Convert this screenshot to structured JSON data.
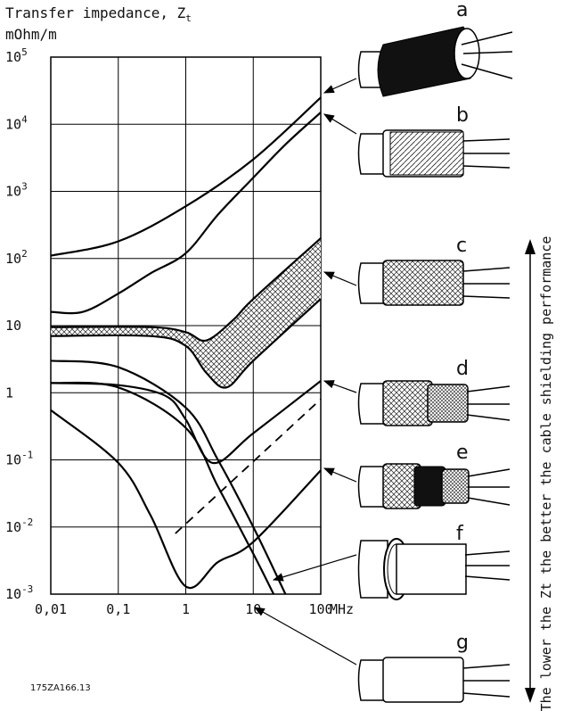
{
  "figure": {
    "y_title_line1": "Transfer impedance, Z",
    "y_title_sub": "t",
    "y_title_line2": "mOhm/m",
    "x_unit": "MHz",
    "figure_id": "175ZA166.13",
    "side_note": "The lower the Zt the better the cable shielding performance",
    "cable_labels": [
      "a",
      "b",
      "c",
      "d",
      "e",
      "f",
      "g"
    ]
  },
  "chart_data": {
    "type": "line",
    "xscale": "log",
    "yscale": "log",
    "xlim": [
      0.01,
      100
    ],
    "ylim": [
      0.001,
      100000
    ],
    "grid": true,
    "xticks": [
      "0,01",
      "0,1",
      "1",
      "10",
      "100"
    ],
    "yticks": [
      "10-3",
      "10-2",
      "10-1",
      "1",
      "10",
      "102",
      "103",
      "104",
      "105"
    ],
    "series": [
      {
        "name": "a",
        "x": [
          0.01,
          0.1,
          1,
          10,
          100
        ],
        "y": [
          110,
          180,
          600,
          3000,
          25000
        ]
      },
      {
        "name": "b",
        "x": [
          0.01,
          0.03,
          0.1,
          0.3,
          1,
          3,
          10,
          30,
          100
        ],
        "y": [
          16,
          16,
          30,
          60,
          120,
          450,
          1600,
          5000,
          15000
        ]
      },
      {
        "name": "c-upper",
        "x": [
          0.01,
          0.3,
          1,
          2,
          5,
          10,
          100
        ],
        "y": [
          9.5,
          9.5,
          8,
          6,
          12,
          25,
          200
        ]
      },
      {
        "name": "c-lower",
        "x": [
          0.01,
          0.3,
          1,
          2,
          4,
          10,
          100
        ],
        "y": [
          7,
          7,
          5,
          2,
          1.2,
          3,
          25
        ]
      },
      {
        "name": "d",
        "x": [
          0.01,
          0.1,
          0.5,
          1,
          2.5,
          10,
          100
        ],
        "y": [
          1.4,
          1.3,
          0.9,
          0.4,
          0.09,
          0.25,
          1.5
        ]
      },
      {
        "name": "e",
        "x": [
          0.01,
          0.1,
          1,
          3,
          10,
          30
        ],
        "y": [
          3,
          2.4,
          0.6,
          0.1,
          0.01,
          0.001
        ]
      },
      {
        "name": "f",
        "x": [
          0.01,
          0.1,
          0.3,
          1,
          3,
          10,
          100
        ],
        "y": [
          0.55,
          0.09,
          0.015,
          0.0013,
          0.003,
          0.006,
          0.07
        ]
      },
      {
        "name": "g",
        "x": [
          0.01,
          0.1,
          1,
          3,
          10,
          20
        ],
        "y": [
          1.4,
          1.2,
          0.3,
          0.04,
          0.004,
          0.001
        ]
      },
      {
        "name": "dashed",
        "x": [
          0.7,
          100
        ],
        "y": [
          0.008,
          0.8
        ]
      }
    ]
  }
}
